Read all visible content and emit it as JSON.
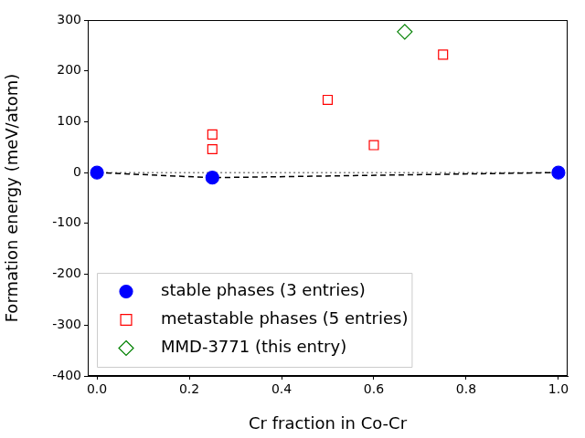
{
  "chart_data": {
    "type": "scatter",
    "x_label": "Cr fraction in Co-Cr",
    "y_label": "Formation energy (meV/atom)",
    "xlim": [
      -0.02,
      1.02
    ],
    "xticks": [
      {
        "value": 0,
        "label": "0.0"
      },
      {
        "value": 0.2,
        "label": "0.2"
      },
      {
        "value": 0.4,
        "label": "0.4"
      },
      {
        "value": 0.6,
        "label": "0.6"
      },
      {
        "value": 0.8,
        "label": "0.8"
      },
      {
        "value": 1,
        "label": "1.0"
      }
    ],
    "ylim": [
      -400,
      300
    ],
    "yticks": [
      -400,
      -300,
      -200,
      -100,
      0,
      100,
      200,
      300
    ],
    "grid": false,
    "legend": "lower left",
    "series": [
      {
        "name": "stable phases (3 entries)",
        "color": "#0000ff",
        "marker": "circle",
        "x": [
          0,
          0.25,
          1
        ],
        "values": [
          0,
          -10,
          0
        ]
      },
      {
        "name": "metastable phases (5 entries)",
        "color": "#ff0000",
        "marker": "open_square",
        "x": [
          0.25,
          0.25,
          0.5,
          0.6,
          0.75
        ],
        "values": [
          75,
          46,
          143,
          54,
          232
        ]
      },
      {
        "name": "MMD-3771 (this entry)",
        "color": "#008000",
        "marker": "open_diamond",
        "x": [
          0.667
        ],
        "values": [
          277
        ]
      },
      {
        "type": "line",
        "color": "#000000",
        "line_style": "dashed",
        "x": [
          0,
          0.25,
          1
        ],
        "values": [
          0,
          -10,
          0
        ]
      },
      {
        "type": "line",
        "color": "#808080",
        "line_style": "dotted",
        "x": [
          0,
          1
        ],
        "values": [
          0,
          0
        ]
      }
    ]
  }
}
